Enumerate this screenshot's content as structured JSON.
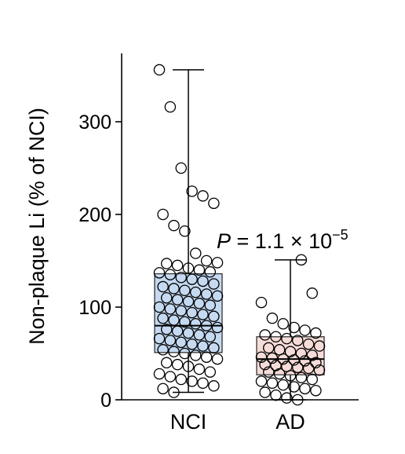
{
  "chart_data": {
    "type": "boxplot",
    "title": "",
    "xlabel": "",
    "ylabel": "Non-plaque Li (% of NCI)",
    "ylim": [
      0,
      370
    ],
    "yticks": [
      0,
      100,
      200,
      300
    ],
    "categories": [
      "NCI",
      "AD"
    ],
    "box_colors": [
      "#c5d9f1",
      "#f6dcd8"
    ],
    "annotation": {
      "p_prefix": "P",
      "p_value": " = 1.1 × 10",
      "p_exponent": "−5"
    },
    "groups": [
      {
        "name": "NCI",
        "whisker_low": 8,
        "q1": 51,
        "median": 80,
        "q3": 136,
        "whisker_high": 356,
        "points": [
          356,
          316,
          250,
          225,
          220,
          212,
          200,
          188,
          182,
          158,
          150,
          148,
          147,
          145,
          142,
          140,
          138,
          137,
          135,
          132,
          130,
          128,
          125,
          122,
          120,
          118,
          116,
          114,
          112,
          110,
          108,
          106,
          104,
          102,
          100,
          98,
          96,
          94,
          92,
          90,
          88,
          86,
          84,
          82,
          80,
          78,
          76,
          74,
          72,
          70,
          68,
          66,
          64,
          62,
          60,
          58,
          56,
          54,
          52,
          50,
          48,
          46,
          44,
          40,
          38,
          36,
          33,
          30,
          28,
          25,
          22,
          20,
          18,
          15,
          12,
          8
        ]
      },
      {
        "name": "AD",
        "whisker_low": 0,
        "q1": 27,
        "median": 44,
        "q3": 68,
        "whisker_high": 151,
        "points": [
          151,
          115,
          105,
          88,
          82,
          78,
          75,
          72,
          70,
          68,
          66,
          64,
          60,
          58,
          56,
          54,
          52,
          50,
          48,
          46,
          45,
          44,
          43,
          42,
          40,
          38,
          37,
          36,
          35,
          34,
          32,
          30,
          28,
          26,
          24,
          22,
          20,
          18,
          16,
          14,
          12,
          10,
          8,
          5,
          2,
          0
        ]
      }
    ]
  }
}
